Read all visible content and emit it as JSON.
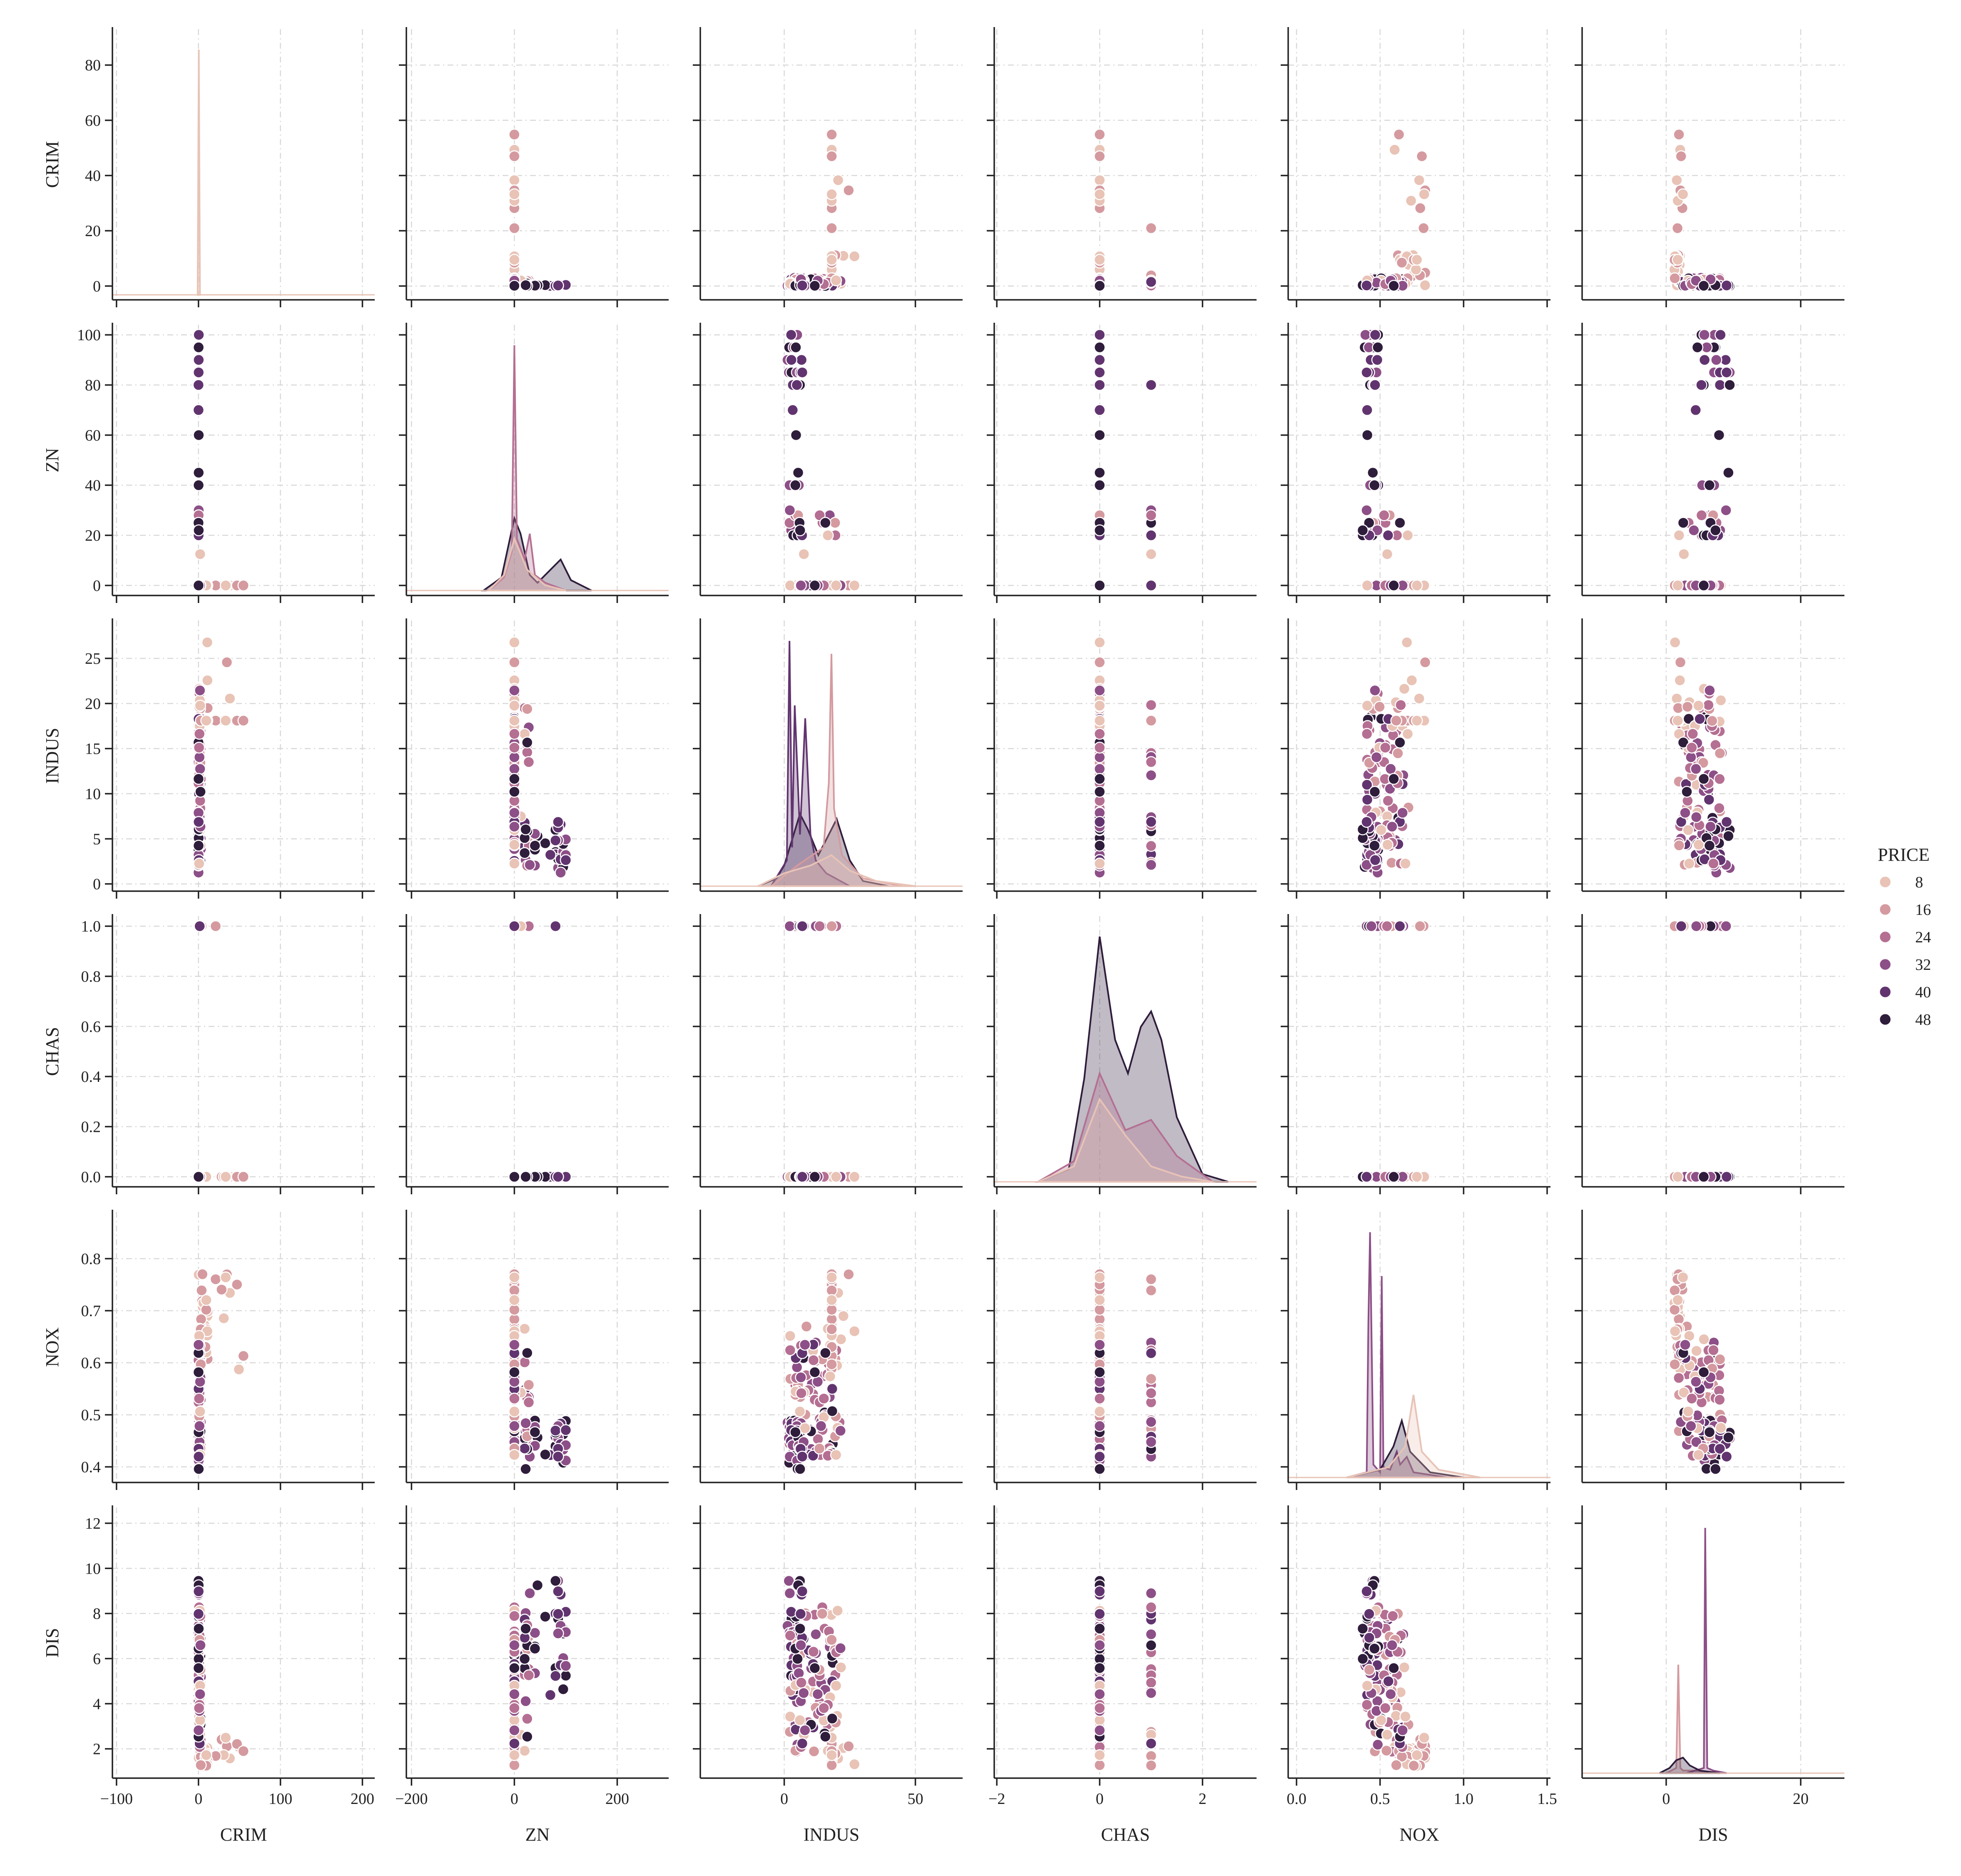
{
  "chart_data": {
    "type": "scatter",
    "subtype": "pairplot",
    "variables": [
      "CRIM",
      "ZN",
      "INDUS",
      "CHAS",
      "NOX",
      "DIS"
    ],
    "hue": "PRICE",
    "legend": {
      "title": "PRICE",
      "placement": "right",
      "entries": [
        "8",
        "16",
        "24",
        "32",
        "40",
        "48"
      ]
    },
    "hue_colors": [
      "#e8c3b6",
      "#d49a9f",
      "#b46f92",
      "#8d4f87",
      "#61346f",
      "#2f1d3c"
    ],
    "grid": true,
    "axes": {
      "CRIM": {
        "lim": [
          -105,
          215
        ],
        "ticks": [
          -100,
          0,
          100,
          200
        ],
        "tick_labels": [
          "−100",
          "0",
          "100",
          "200"
        ]
      },
      "ZN": {
        "lim": [
          -210,
          300
        ],
        "ticks": [
          -200,
          0,
          200
        ],
        "tick_labels": [
          "−200",
          "0",
          "200"
        ]
      },
      "INDUS": {
        "lim": [
          -32,
          68
        ],
        "ticks": [
          0,
          50
        ],
        "tick_labels": [
          "0",
          "50"
        ]
      },
      "CHAS": {
        "lim": [
          -2.05,
          3.05
        ],
        "ticks": [
          -2,
          0,
          2
        ],
        "tick_labels": [
          "−2",
          "0",
          "2"
        ]
      },
      "NOX": {
        "lim": [
          -0.05,
          1.52
        ],
        "ticks": [
          0.0,
          0.5,
          1.0,
          1.5
        ],
        "tick_labels": [
          "0.0",
          "0.5",
          "1.0",
          "1.5"
        ]
      },
      "DIS": {
        "lim": [
          -12.5,
          26.5
        ],
        "ticks": [
          0,
          20
        ],
        "tick_labels": [
          "0",
          "20"
        ]
      }
    },
    "row_axes": {
      "CRIM": {
        "lim": [
          -5,
          93
        ],
        "ticks": [
          0,
          20,
          40,
          60,
          80
        ],
        "tick_labels": [
          "0",
          "20",
          "40",
          "60",
          "80"
        ]
      },
      "ZN": {
        "lim": [
          -4,
          104
        ],
        "ticks": [
          0,
          20,
          40,
          60,
          80,
          100
        ],
        "tick_labels": [
          "0",
          "20",
          "40",
          "60",
          "80",
          "100"
        ]
      },
      "INDUS": {
        "lim": [
          -0.8,
          29.2
        ],
        "ticks": [
          0,
          5,
          10,
          15,
          20,
          25
        ],
        "tick_labels": [
          "0",
          "5",
          "10",
          "15",
          "20",
          "25"
        ]
      },
      "CHAS": {
        "lim": [
          -0.04,
          1.04
        ],
        "ticks": [
          0.0,
          0.2,
          0.4,
          0.6,
          0.8,
          1.0
        ],
        "tick_labels": [
          "0.0",
          "0.2",
          "0.4",
          "0.6",
          "0.8",
          "1.0"
        ]
      },
      "NOX": {
        "lim": [
          0.37,
          0.89
        ],
        "ticks": [
          0.4,
          0.5,
          0.6,
          0.7,
          0.8
        ],
        "tick_labels": [
          "0.4",
          "0.5",
          "0.6",
          "0.7",
          "0.8"
        ]
      },
      "DIS": {
        "lim": [
          0.7,
          12.7
        ],
        "ticks": [
          2,
          4,
          6,
          8,
          10,
          12
        ],
        "tick_labels": [
          "2",
          "4",
          "6",
          "8",
          "10",
          "12"
        ]
      }
    },
    "diagonal": {
      "CRIM": {
        "type": "kde",
        "curves": [
          {
            "hue": 0,
            "x": [
              -1,
              0.4,
              1.8
            ],
            "y": [
              0,
              0.95,
              0
            ]
          }
        ]
      },
      "ZN": {
        "type": "kde",
        "curves": [
          {
            "hue": 5,
            "x": [
              -60,
              -25,
              0,
              12,
              30,
              45,
              70,
              90,
              110,
              150
            ],
            "y": [
              0,
              0.05,
              0.28,
              0.22,
              0.06,
              0.03,
              0.08,
              0.12,
              0.04,
              0
            ]
          },
          {
            "hue": 2,
            "x": [
              -50,
              -20,
              -5,
              0,
              5,
              20,
              30,
              40,
              60,
              100
            ],
            "y": [
              0,
              0.05,
              0.15,
              0.95,
              0.2,
              0.12,
              0.22,
              0.06,
              0.03,
              0
            ]
          },
          {
            "hue": 0,
            "x": [
              -50,
              -20,
              0,
              25,
              60,
              100
            ],
            "y": [
              0,
              0.06,
              0.2,
              0.08,
              0.02,
              0
            ]
          }
        ]
      },
      "INDUS": {
        "type": "kde",
        "curves": [
          {
            "hue": 5,
            "x": [
              -10,
              -3,
              0,
              3,
              6,
              9,
              13,
              17,
              20,
              25,
              30,
              40
            ],
            "y": [
              0,
              0.03,
              0.08,
              0.18,
              0.28,
              0.22,
              0.12,
              0.2,
              0.26,
              0.1,
              0.02,
              0
            ]
          },
          {
            "hue": 4,
            "x": [
              -5,
              1,
              2,
              3,
              4,
              6,
              8,
              10,
              12,
              16,
              25
            ],
            "y": [
              0,
              0.1,
              0.95,
              0.15,
              0.7,
              0.2,
              0.65,
              0.2,
              0.1,
              0.05,
              0
            ]
          },
          {
            "hue": 1,
            "x": [
              -5,
              5,
              15,
              17,
              18,
              19,
              22,
              30,
              45
            ],
            "y": [
              0,
              0.08,
              0.15,
              0.4,
              0.9,
              0.3,
              0.12,
              0.03,
              0
            ]
          },
          {
            "hue": 0,
            "x": [
              -10,
              0,
              10,
              18,
              25,
              35,
              50
            ],
            "y": [
              0,
              0.05,
              0.08,
              0.12,
              0.06,
              0.02,
              0
            ]
          }
        ]
      },
      "CHAS": {
        "type": "kde",
        "curves": [
          {
            "hue": 5,
            "x": [
              -1.2,
              -0.6,
              -0.3,
              0,
              0.3,
              0.55,
              0.8,
              1.0,
              1.2,
              1.5,
              2.0,
              2.5
            ],
            "y": [
              0,
              0.05,
              0.4,
              0.95,
              0.55,
              0.42,
              0.6,
              0.66,
              0.55,
              0.25,
              0.03,
              0
            ]
          },
          {
            "hue": 2,
            "x": [
              -1.2,
              -0.5,
              0,
              0.5,
              1,
              1.5,
              2.2
            ],
            "y": [
              0,
              0.08,
              0.42,
              0.2,
              0.24,
              0.1,
              0
            ]
          },
          {
            "hue": 0,
            "x": [
              -1.2,
              -0.5,
              0,
              0.5,
              1,
              1.6,
              2.2
            ],
            "y": [
              0,
              0.06,
              0.32,
              0.18,
              0.06,
              0.02,
              0
            ]
          }
        ]
      },
      "NOX": {
        "type": "kde",
        "curves": [
          {
            "hue": 3,
            "x": [
              0.3,
              0.42,
              0.43,
              0.44,
              0.46,
              0.5,
              0.51,
              0.52,
              0.56,
              0.6,
              0.62,
              0.66,
              0.7,
              0.9
            ],
            "y": [
              0,
              0.02,
              0.6,
              0.95,
              0.05,
              0.02,
              0.78,
              0.04,
              0.03,
              0.1,
              0.05,
              0.08,
              0.02,
              0
            ]
          },
          {
            "hue": 5,
            "x": [
              0.3,
              0.5,
              0.58,
              0.63,
              0.68,
              0.8,
              1.0
            ],
            "y": [
              0,
              0.03,
              0.12,
              0.22,
              0.1,
              0.02,
              0
            ]
          },
          {
            "hue": 0,
            "x": [
              0.3,
              0.55,
              0.65,
              0.7,
              0.75,
              0.85,
              1.1
            ],
            "y": [
              0,
              0.04,
              0.12,
              0.32,
              0.1,
              0.03,
              0
            ]
          }
        ]
      },
      "DIS": {
        "type": "kde",
        "curves": [
          {
            "hue": 1,
            "x": [
              0,
              1.5,
              1.8,
              2.1,
              2.5,
              4,
              8
            ],
            "y": [
              0,
              0.02,
              0.42,
              0.02,
              0.01,
              0.01,
              0
            ]
          },
          {
            "hue": 3,
            "x": [
              3,
              5.6,
              5.8,
              6.1,
              7,
              9
            ],
            "y": [
              0,
              0.02,
              0.95,
              0.02,
              0.01,
              0
            ]
          },
          {
            "hue": 5,
            "x": [
              -1,
              0.5,
              1.5,
              2.5,
              3.5,
              5,
              8
            ],
            "y": [
              0,
              0.02,
              0.05,
              0.06,
              0.03,
              0.01,
              0
            ]
          }
        ]
      }
    }
  }
}
